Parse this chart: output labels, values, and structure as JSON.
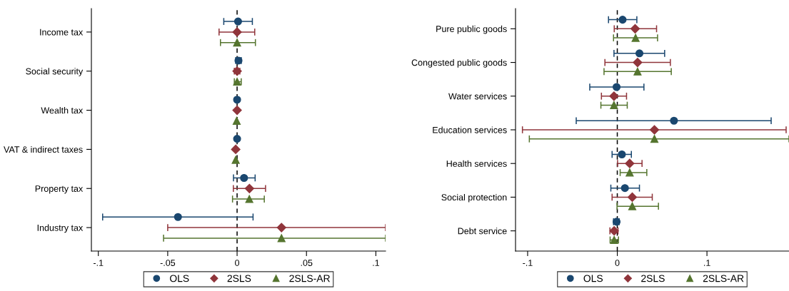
{
  "chart_data": [
    {
      "type": "scatter",
      "orientation": "horizontal",
      "categories": [
        "Income tax",
        "Social security",
        "Wealth tax",
        "VAT & indirect taxes",
        "Property tax",
        "Industry tax"
      ],
      "xlim": [
        -0.105,
        0.107
      ],
      "xticks": [
        {
          "value": -0.1,
          "label": "-.1"
        },
        {
          "value": -0.05,
          "label": "-.05"
        },
        0,
        {
          "value": 0.05,
          "label": ".05"
        },
        {
          "value": 0.1,
          "label": ".1"
        }
      ],
      "ref_lines": [
        {
          "axis": "x",
          "value": 0,
          "color": "#000000",
          "line_style": "dashed"
        }
      ],
      "legend": "bottom",
      "series": [
        {
          "name": "OLS",
          "color": "#1a476f",
          "marker": "circle",
          "values": [
            0.0007,
            0.001,
            0,
            0,
            0.005,
            -0.0426
          ],
          "errors": [
            [
              -0.0096,
              0.011
            ],
            [
              -0.001,
              0.003
            ],
            null,
            null,
            [
              -0.0026,
              0.013
            ],
            [
              -0.0969,
              0.0115
            ]
          ]
        },
        {
          "name": "2SLS",
          "color": "#90353b",
          "marker": "diamond",
          "values": [
            0,
            0,
            0,
            -0.001,
            0.0089,
            0.032
          ],
          "errors": [
            [
              -0.013,
              0.0127
            ],
            [
              -0.002,
              0.002
            ],
            null,
            null,
            [
              -0.0027,
              0.0205
            ],
            [
              -0.05,
              0.107
            ]
          ]
        },
        {
          "name": "2SLS-AR",
          "color": "#55752f",
          "marker": "triangle",
          "values": [
            0,
            0,
            -0.0003,
            -0.001,
            0.0088,
            0.032
          ],
          "errors": [
            [
              -0.012,
              0.0132
            ],
            [
              -0.002,
              0.003
            ],
            null,
            null,
            [
              -0.0033,
              0.0196
            ],
            [
              -0.053,
              0.107
            ]
          ]
        }
      ]
    },
    {
      "type": "scatter",
      "orientation": "horizontal",
      "categories": [
        "Pure public goods",
        "Congested public goods",
        "Water services",
        "Education services",
        "Health services",
        "Social protection",
        "Debt service"
      ],
      "xlim": [
        -0.1135,
        0.1915
      ],
      "xticks": [
        {
          "value": -0.1,
          "label": "-.1"
        },
        0,
        {
          "value": 0.1,
          "label": ".1"
        }
      ],
      "ref_lines": [
        {
          "axis": "x",
          "value": 0,
          "color": "#000000",
          "line_style": "dashed"
        }
      ],
      "legend": "bottom",
      "series": [
        {
          "name": "OLS",
          "color": "#1a476f",
          "marker": "circle",
          "values": [
            0.0059,
            0.0247,
            -0.0008,
            0.0632,
            0.0051,
            0.0085,
            -0.0008
          ],
          "errors": [
            [
              -0.0098,
              0.0218
            ],
            [
              -0.0037,
              0.0528
            ],
            [
              -0.0307,
              0.0297
            ],
            [
              -0.0458,
              0.1716
            ],
            [
              -0.0058,
              0.0157
            ],
            [
              -0.0072,
              0.0247
            ],
            [
              -0.0042,
              0.0021
            ]
          ]
        },
        {
          "name": "2SLS",
          "color": "#90353b",
          "marker": "diamond",
          "values": [
            0.0199,
            0.0226,
            -0.0037,
            0.0414,
            0.0138,
            0.0167,
            -0.0035
          ],
          "errors": [
            [
              -0.0034,
              0.0438
            ],
            [
              -0.0138,
              0.0592
            ],
            [
              -0.0177,
              0.0103
            ],
            [
              -0.1058,
              0.1883
            ],
            [
              0.0003,
              0.0276
            ],
            [
              -0.0058,
              0.039
            ],
            [
              -0.0082,
              0.0008
            ]
          ]
        },
        {
          "name": "2SLS-AR",
          "color": "#55752f",
          "marker": "triangle",
          "values": [
            0.0204,
            0.0226,
            -0.0037,
            0.0414,
            0.0138,
            0.0167,
            -0.0035
          ],
          "errors": [
            [
              -0.0042,
              0.0449
            ],
            [
              -0.0148,
              0.0602
            ],
            [
              -0.0183,
              0.0111
            ],
            [
              -0.0981,
              0.1915
            ],
            [
              0.0032,
              0.0329
            ],
            [
              -0.0003,
              0.0459
            ],
            [
              -0.008,
              0.0013
            ]
          ]
        }
      ]
    }
  ]
}
